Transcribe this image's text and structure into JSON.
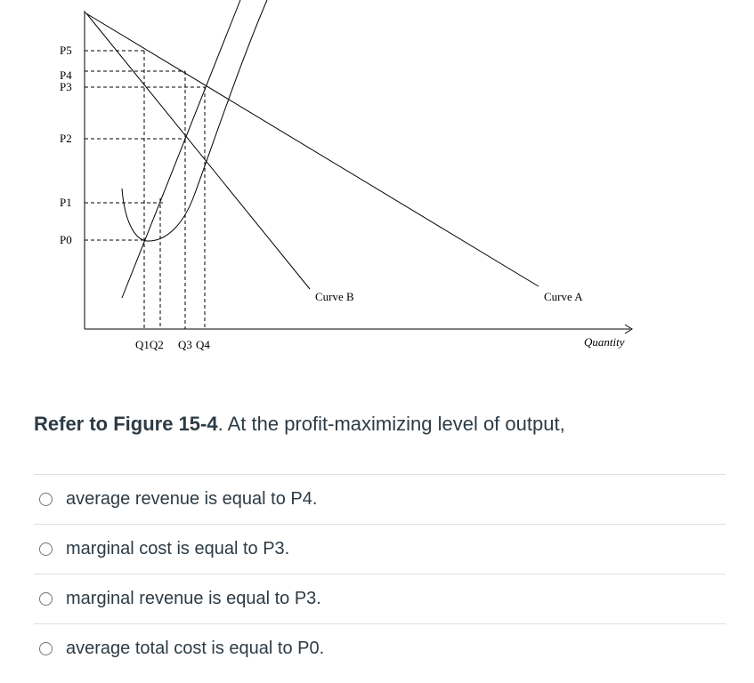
{
  "figure": {
    "price_labels": [
      "P5",
      "P4",
      "P3",
      "P2",
      "P1",
      "P0"
    ],
    "quantity_labels": [
      "Q1Q2",
      "Q3",
      "Q4"
    ],
    "curve_a_label": "Curve A",
    "curve_b_label": "Curve B",
    "x_axis_label": "Quantity"
  },
  "question": {
    "figure_ref": "Refer to Figure 15-4",
    "text": ". At the profit-maximizing level of output,"
  },
  "answers": [
    "average revenue is equal to P4.",
    "marginal cost is equal to P3.",
    "marginal revenue is equal to P3.",
    "average total cost is equal to P0."
  ],
  "colors": {
    "text": "#2d3b45",
    "divider": "#dcdfe3",
    "radio_border": "#6b7780"
  }
}
